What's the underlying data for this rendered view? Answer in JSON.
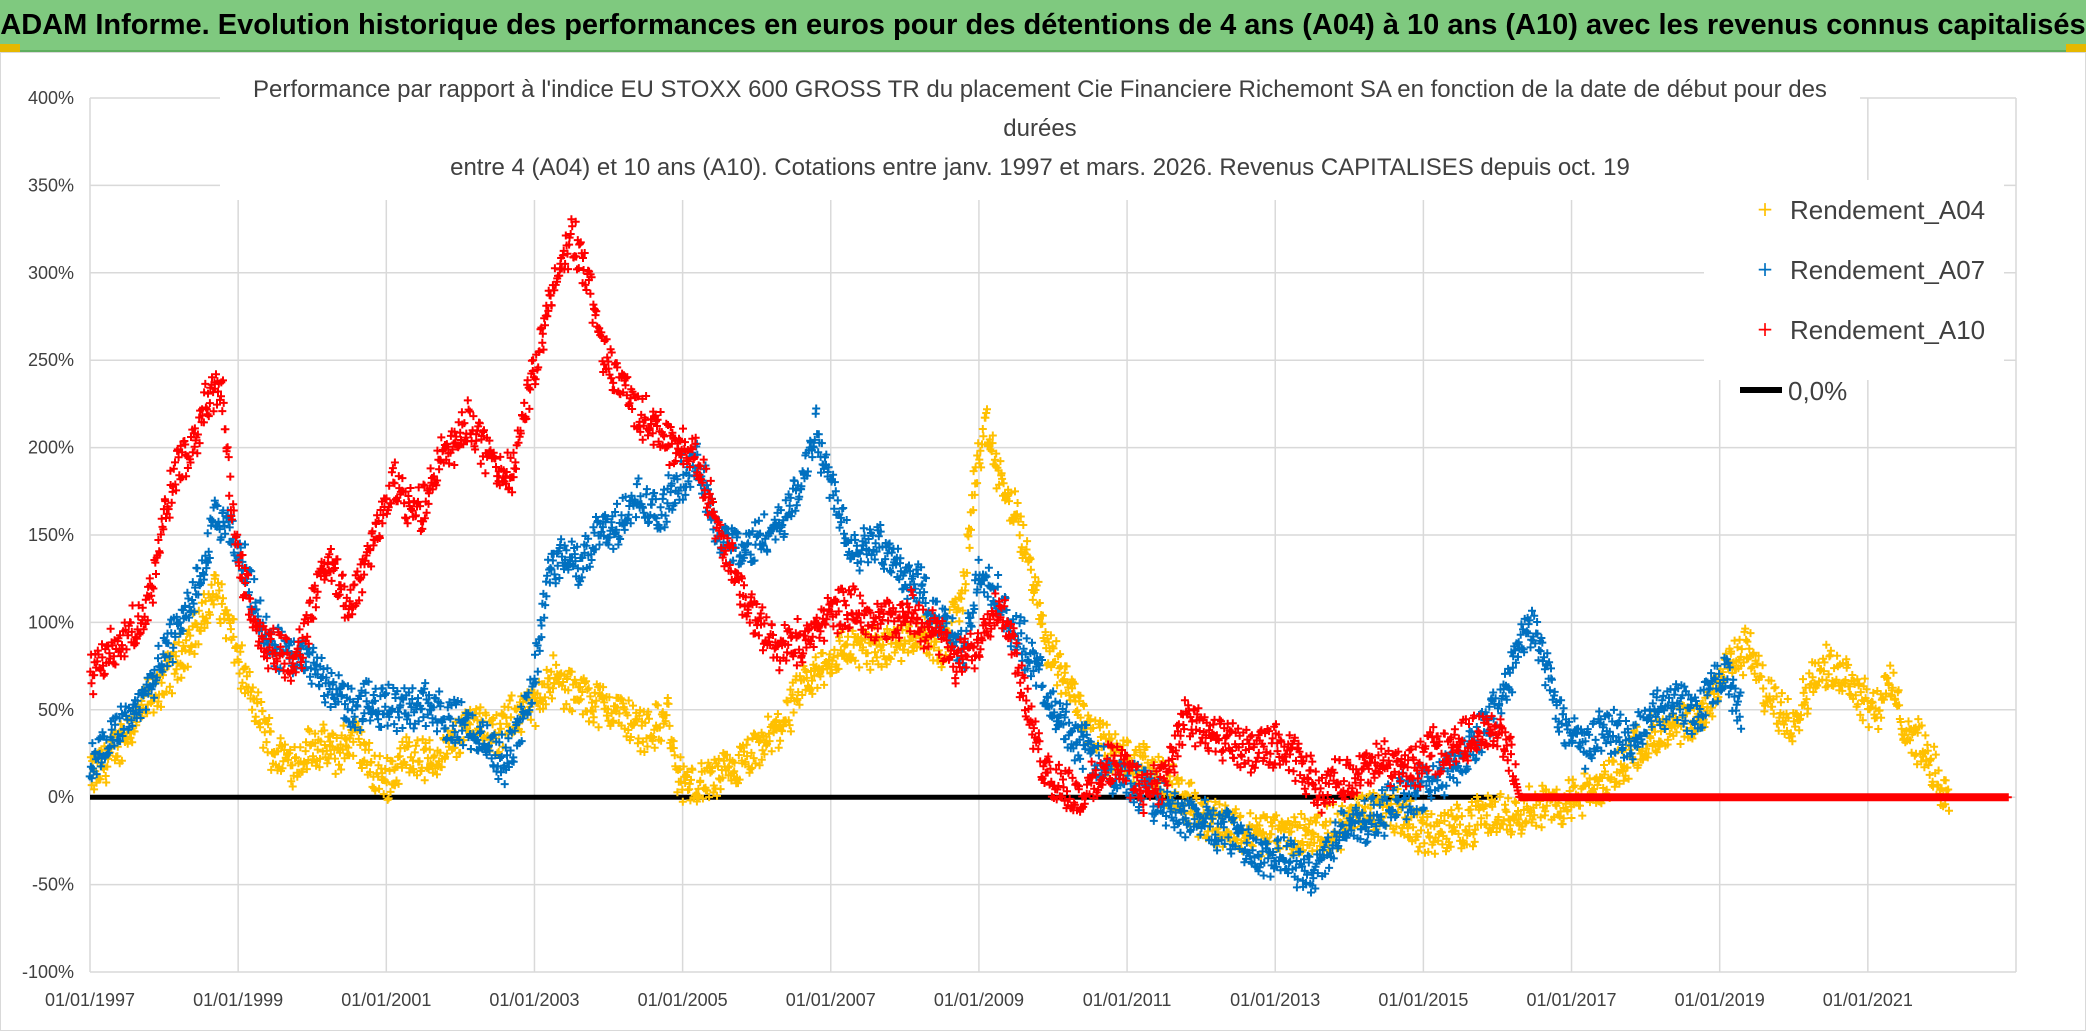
{
  "banner": {
    "title": "ADAM Informe. Evolution historique des performances en euros pour des détentions de 4 ans (A04) à 10 ans (A10) avec les revenus connus capitalisés"
  },
  "colors": {
    "banner_bg": "#7fc97f",
    "a04": "#ffc000",
    "a07": "#0070c0",
    "a10": "#ff0000",
    "zero": "#000000",
    "grid": "#d9d9d9"
  },
  "chart_data": {
    "type": "scatter",
    "title_lines": [
      "Performance par rapport à l'indice EU STOXX 600 GROSS TR  du placement Cie Financiere Richemont SA en fonction de la date de début pour des",
      "durées",
      "entre 4 (A04) et 10 ans (A10). Cotations entre janv. 1997 et mars. 2026. Revenus CAPITALISES depuis oct. 19"
    ],
    "x_range": [
      1997.0,
      2023.0
    ],
    "x_ticks": [
      {
        "value": 1997,
        "label": "01/01/1997"
      },
      {
        "value": 1999,
        "label": "01/01/1999"
      },
      {
        "value": 2001,
        "label": "01/01/2001"
      },
      {
        "value": 2003,
        "label": "01/01/2003"
      },
      {
        "value": 2005,
        "label": "01/01/2005"
      },
      {
        "value": 2007,
        "label": "01/01/2007"
      },
      {
        "value": 2009,
        "label": "01/01/2009"
      },
      {
        "value": 2011,
        "label": "01/01/2011"
      },
      {
        "value": 2013,
        "label": "01/01/2013"
      },
      {
        "value": 2015,
        "label": "01/01/2015"
      },
      {
        "value": 2017,
        "label": "01/01/2017"
      },
      {
        "value": 2019,
        "label": "01/01/2019"
      },
      {
        "value": 2021,
        "label": "01/01/2021"
      }
    ],
    "ylim": [
      -100,
      400
    ],
    "y_ticks": [
      {
        "value": 400,
        "label": "400%"
      },
      {
        "value": 350,
        "label": "350%"
      },
      {
        "value": 300,
        "label": "300%"
      },
      {
        "value": 250,
        "label": "250%"
      },
      {
        "value": 200,
        "label": "200%"
      },
      {
        "value": 150,
        "label": "150%"
      },
      {
        "value": 100,
        "label": "100%"
      },
      {
        "value": 50,
        "label": "50%"
      },
      {
        "value": 0,
        "label": "0%"
      },
      {
        "value": -50,
        "label": "-50%"
      },
      {
        "value": -100,
        "label": "-100%"
      }
    ],
    "legend_position": "top-right",
    "series": [
      {
        "name": "Rendement_A04",
        "marker": "+",
        "points": [
          [
            1997.0,
            10
          ],
          [
            1997.3,
            25
          ],
          [
            1997.6,
            45
          ],
          [
            1997.9,
            60
          ],
          [
            1998.2,
            80
          ],
          [
            1998.5,
            100
          ],
          [
            1998.7,
            120
          ],
          [
            1998.9,
            95
          ],
          [
            1999.1,
            65
          ],
          [
            1999.3,
            45
          ],
          [
            1999.5,
            25
          ],
          [
            1999.8,
            20
          ],
          [
            2000.0,
            30
          ],
          [
            2000.3,
            25
          ],
          [
            2000.6,
            35
          ],
          [
            2000.8,
            15
          ],
          [
            2001.0,
            10
          ],
          [
            2001.3,
            25
          ],
          [
            2001.6,
            20
          ],
          [
            2001.9,
            30
          ],
          [
            2002.2,
            45
          ],
          [
            2002.5,
            35
          ],
          [
            2002.8,
            50
          ],
          [
            2003.0,
            50
          ],
          [
            2003.2,
            70
          ],
          [
            2003.5,
            60
          ],
          [
            2003.8,
            55
          ],
          [
            2004.1,
            50
          ],
          [
            2004.4,
            40
          ],
          [
            2004.7,
            40
          ],
          [
            2004.8,
            50
          ],
          [
            2004.9,
            15
          ],
          [
            2005.1,
            5
          ],
          [
            2005.4,
            10
          ],
          [
            2005.7,
            15
          ],
          [
            2006.0,
            25
          ],
          [
            2006.3,
            40
          ],
          [
            2006.6,
            60
          ],
          [
            2006.9,
            75
          ],
          [
            2007.2,
            85
          ],
          [
            2007.6,
            85
          ],
          [
            2007.9,
            90
          ],
          [
            2008.2,
            95
          ],
          [
            2008.5,
            85
          ],
          [
            2008.8,
            120
          ],
          [
            2008.95,
            185
          ],
          [
            2009.1,
            210
          ],
          [
            2009.3,
            180
          ],
          [
            2009.5,
            160
          ],
          [
            2009.7,
            130
          ],
          [
            2009.9,
            90
          ],
          [
            2010.2,
            65
          ],
          [
            2010.5,
            40
          ],
          [
            2010.8,
            25
          ],
          [
            2011.1,
            20
          ],
          [
            2011.4,
            15
          ],
          [
            2011.7,
            0
          ],
          [
            2012.0,
            -10
          ],
          [
            2012.3,
            -15
          ],
          [
            2012.6,
            -20
          ],
          [
            2012.9,
            -20
          ],
          [
            2013.2,
            -22
          ],
          [
            2013.5,
            -20
          ],
          [
            2013.8,
            -18
          ],
          [
            2014.1,
            -10
          ],
          [
            2014.4,
            -5
          ],
          [
            2014.7,
            -10
          ],
          [
            2015.0,
            -20
          ],
          [
            2015.3,
            -20
          ],
          [
            2015.6,
            -15
          ],
          [
            2015.9,
            -10
          ],
          [
            2016.2,
            -10
          ],
          [
            2016.5,
            -5
          ],
          [
            2016.8,
            -5
          ],
          [
            2017.1,
            0
          ],
          [
            2017.4,
            5
          ],
          [
            2017.6,
            15
          ],
          [
            2017.9,
            30
          ],
          [
            2018.2,
            35
          ],
          [
            2018.5,
            40
          ],
          [
            2018.8,
            45
          ],
          [
            2019.0,
            70
          ],
          [
            2019.2,
            80
          ],
          [
            2019.4,
            85
          ],
          [
            2019.6,
            60
          ],
          [
            2019.8,
            50
          ],
          [
            2020.0,
            45
          ],
          [
            2020.3,
            70
          ],
          [
            2020.5,
            75
          ],
          [
            2020.7,
            70
          ],
          [
            2020.9,
            60
          ],
          [
            2021.1,
            50
          ],
          [
            2021.3,
            65
          ],
          [
            2021.5,
            40
          ],
          [
            2021.7,
            30
          ],
          [
            2021.9,
            15
          ],
          [
            2022.0,
            5
          ],
          [
            2022.1,
            -5
          ]
        ]
      },
      {
        "name": "Rendement_A07",
        "marker": "+",
        "points": [
          [
            1997.0,
            20
          ],
          [
            1997.3,
            35
          ],
          [
            1997.6,
            50
          ],
          [
            1997.9,
            70
          ],
          [
            1998.2,
            100
          ],
          [
            1998.5,
            125
          ],
          [
            1998.7,
            160
          ],
          [
            1998.9,
            150
          ],
          [
            1999.1,
            130
          ],
          [
            1999.3,
            100
          ],
          [
            1999.5,
            85
          ],
          [
            1999.8,
            80
          ],
          [
            2000.0,
            75
          ],
          [
            2000.3,
            60
          ],
          [
            2000.6,
            50
          ],
          [
            2000.9,
            55
          ],
          [
            2001.2,
            50
          ],
          [
            2001.5,
            55
          ],
          [
            2001.8,
            45
          ],
          [
            2002.1,
            40
          ],
          [
            2002.4,
            30
          ],
          [
            2002.6,
            20
          ],
          [
            2002.8,
            40
          ],
          [
            2003.0,
            70
          ],
          [
            2003.2,
            130
          ],
          [
            2003.4,
            140
          ],
          [
            2003.6,
            130
          ],
          [
            2003.8,
            150
          ],
          [
            2004.1,
            155
          ],
          [
            2004.4,
            170
          ],
          [
            2004.7,
            160
          ],
          [
            2004.9,
            180
          ],
          [
            2005.2,
            190
          ],
          [
            2005.5,
            150
          ],
          [
            2005.8,
            140
          ],
          [
            2006.1,
            150
          ],
          [
            2006.4,
            160
          ],
          [
            2006.6,
            180
          ],
          [
            2006.8,
            210
          ],
          [
            2007.0,
            180
          ],
          [
            2007.3,
            140
          ],
          [
            2007.6,
            150
          ],
          [
            2007.9,
            130
          ],
          [
            2008.2,
            120
          ],
          [
            2008.5,
            100
          ],
          [
            2008.8,
            80
          ],
          [
            2009.0,
            130
          ],
          [
            2009.2,
            120
          ],
          [
            2009.4,
            100
          ],
          [
            2009.7,
            80
          ],
          [
            2010.0,
            50
          ],
          [
            2010.3,
            35
          ],
          [
            2010.6,
            20
          ],
          [
            2010.9,
            10
          ],
          [
            2011.2,
            5
          ],
          [
            2011.5,
            -5
          ],
          [
            2011.8,
            -10
          ],
          [
            2012.1,
            -15
          ],
          [
            2012.4,
            -20
          ],
          [
            2012.7,
            -30
          ],
          [
            2013.0,
            -35
          ],
          [
            2013.3,
            -40
          ],
          [
            2013.5,
            -45
          ],
          [
            2013.8,
            -25
          ],
          [
            2014.1,
            -15
          ],
          [
            2014.4,
            -10
          ],
          [
            2014.7,
            0
          ],
          [
            2015.0,
            5
          ],
          [
            2015.3,
            15
          ],
          [
            2015.6,
            25
          ],
          [
            2015.9,
            45
          ],
          [
            2016.1,
            60
          ],
          [
            2016.3,
            90
          ],
          [
            2016.5,
            95
          ],
          [
            2016.7,
            70
          ],
          [
            2016.9,
            40
          ],
          [
            2017.2,
            30
          ],
          [
            2017.5,
            40
          ],
          [
            2017.8,
            30
          ],
          [
            2018.1,
            50
          ],
          [
            2018.4,
            55
          ],
          [
            2018.7,
            45
          ],
          [
            2018.9,
            65
          ],
          [
            2019.1,
            70
          ],
          [
            2019.3,
            45
          ]
        ]
      },
      {
        "name": "Rendement_A10",
        "marker": "+",
        "points": [
          [
            1997.0,
            70
          ],
          [
            1997.2,
            80
          ],
          [
            1997.5,
            90
          ],
          [
            1997.8,
            110
          ],
          [
            1998.0,
            160
          ],
          [
            1998.2,
            190
          ],
          [
            1998.4,
            200
          ],
          [
            1998.6,
            230
          ],
          [
            1998.8,
            230
          ],
          [
            1998.9,
            170
          ],
          [
            1999.1,
            120
          ],
          [
            1999.3,
            90
          ],
          [
            1999.5,
            85
          ],
          [
            1999.7,
            80
          ],
          [
            1999.9,
            90
          ],
          [
            2000.1,
            130
          ],
          [
            2000.3,
            130
          ],
          [
            2000.5,
            110
          ],
          [
            2000.7,
            130
          ],
          [
            2000.9,
            160
          ],
          [
            2001.1,
            180
          ],
          [
            2001.3,
            165
          ],
          [
            2001.5,
            165
          ],
          [
            2001.7,
            190
          ],
          [
            2001.9,
            200
          ],
          [
            2002.1,
            215
          ],
          [
            2002.3,
            200
          ],
          [
            2002.5,
            190
          ],
          [
            2002.7,
            180
          ],
          [
            2002.9,
            230
          ],
          [
            2003.1,
            260
          ],
          [
            2003.3,
            300
          ],
          [
            2003.5,
            320
          ],
          [
            2003.7,
            300
          ],
          [
            2003.9,
            260
          ],
          [
            2004.1,
            240
          ],
          [
            2004.4,
            220
          ],
          [
            2004.7,
            210
          ],
          [
            2004.9,
            200
          ],
          [
            2005.1,
            200
          ],
          [
            2005.3,
            180
          ],
          [
            2005.5,
            150
          ],
          [
            2005.7,
            130
          ],
          [
            2005.9,
            110
          ],
          [
            2006.1,
            95
          ],
          [
            2006.3,
            85
          ],
          [
            2006.6,
            90
          ],
          [
            2006.9,
            100
          ],
          [
            2007.2,
            110
          ],
          [
            2007.5,
            105
          ],
          [
            2007.8,
            100
          ],
          [
            2008.1,
            105
          ],
          [
            2008.4,
            95
          ],
          [
            2008.7,
            75
          ],
          [
            2009.0,
            90
          ],
          [
            2009.2,
            110
          ],
          [
            2009.4,
            100
          ],
          [
            2009.6,
            60
          ],
          [
            2009.8,
            25
          ],
          [
            2010.0,
            10
          ],
          [
            2010.2,
            5
          ],
          [
            2010.4,
            0
          ],
          [
            2010.6,
            10
          ],
          [
            2010.8,
            20
          ],
          [
            2011.0,
            15
          ],
          [
            2011.2,
            5
          ],
          [
            2011.5,
            10
          ],
          [
            2011.8,
            45
          ],
          [
            2012.1,
            35
          ],
          [
            2012.4,
            30
          ],
          [
            2012.7,
            25
          ],
          [
            2013.0,
            30
          ],
          [
            2013.3,
            20
          ],
          [
            2013.6,
            5
          ],
          [
            2013.9,
            10
          ],
          [
            2014.2,
            15
          ],
          [
            2014.5,
            20
          ],
          [
            2014.8,
            15
          ],
          [
            2015.1,
            25
          ],
          [
            2015.4,
            30
          ],
          [
            2015.7,
            35
          ],
          [
            2015.9,
            40
          ],
          [
            2016.1,
            35
          ],
          [
            2016.3,
            0
          ],
          [
            2017.0,
            0
          ],
          [
            2018.0,
            0
          ],
          [
            2019.0,
            0
          ],
          [
            2020.0,
            0
          ],
          [
            2021.0,
            0
          ],
          [
            2022.0,
            0
          ],
          [
            2022.9,
            0
          ]
        ]
      },
      {
        "name": "0,0%",
        "marker": "line",
        "points": [
          [
            1997.0,
            0
          ],
          [
            2016.0,
            0
          ]
        ]
      }
    ]
  }
}
